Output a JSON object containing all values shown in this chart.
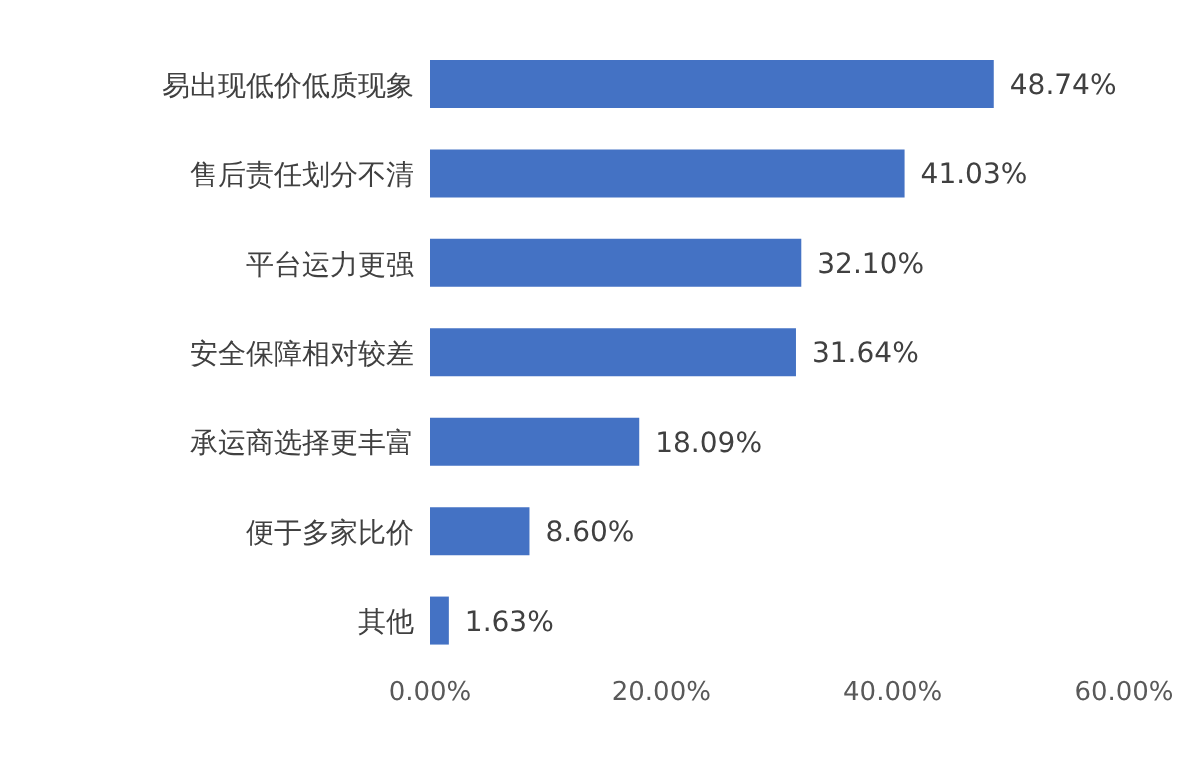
{
  "chart_data": {
    "type": "bar",
    "orientation": "horizontal",
    "categories": [
      "易出现低价低质现象",
      "售后责任划分不清",
      "平台运力更强",
      "安全保障相对较差",
      "承运商选择更丰富",
      "便于多家比价",
      "其他"
    ],
    "values": [
      48.74,
      41.03,
      32.1,
      31.64,
      18.09,
      8.6,
      1.63
    ],
    "value_labels": [
      "48.74%",
      "41.03%",
      "32.10%",
      "31.64%",
      "18.09%",
      "8.60%",
      "1.63%"
    ],
    "color": "#4472c4",
    "xlim": [
      0,
      60
    ],
    "xticks": [
      {
        "value": 0,
        "label": "0.00%"
      },
      {
        "value": 20,
        "label": "20.00%"
      },
      {
        "value": 40,
        "label": "40.00%"
      },
      {
        "value": 60,
        "label": "60.00%"
      }
    ],
    "grid": false,
    "legend": false
  }
}
